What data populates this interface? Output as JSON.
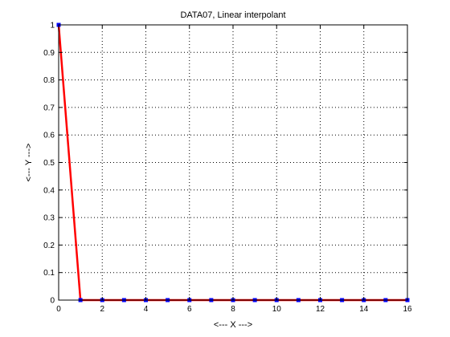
{
  "chart_data": {
    "type": "line",
    "title": "DATA07, Linear interpolant",
    "xlabel": "<--- X --->",
    "ylabel": "<--- Y --->",
    "xlim": [
      0,
      16
    ],
    "ylim": [
      0,
      1
    ],
    "x_ticks": [
      0,
      2,
      4,
      6,
      8,
      10,
      12,
      14,
      16
    ],
    "x_tick_labels": [
      "0",
      "2",
      "4",
      "6",
      "8",
      "10",
      "12",
      "14",
      "16"
    ],
    "y_ticks": [
      0,
      0.1,
      0.2,
      0.3,
      0.4,
      0.5,
      0.6,
      0.7,
      0.8,
      0.9,
      1
    ],
    "y_tick_labels": [
      "0",
      "0.1",
      "0.2",
      "0.3",
      "0.4",
      "0.5",
      "0.6",
      "0.7",
      "0.8",
      "0.9",
      "1"
    ],
    "grid": true,
    "series": [
      {
        "role": "interpolant",
        "color": "#ff0000",
        "x": [
          0,
          1,
          2,
          3,
          4,
          5,
          6,
          7,
          8,
          9,
          10,
          11,
          12,
          13,
          14,
          15,
          16
        ],
        "y": [
          1,
          0,
          0,
          0,
          0,
          0,
          0,
          0,
          0,
          0,
          0,
          0,
          0,
          0,
          0,
          0,
          0
        ]
      },
      {
        "role": "data-points",
        "color": "#0000ff",
        "x": [
          0,
          1,
          2,
          3,
          4,
          5,
          6,
          7,
          8,
          9,
          10,
          11,
          12,
          13,
          14,
          15,
          16
        ],
        "y": [
          1,
          0,
          0,
          0,
          0,
          0,
          0,
          0,
          0,
          0,
          0,
          0,
          0,
          0,
          0,
          0,
          0
        ]
      }
    ]
  }
}
